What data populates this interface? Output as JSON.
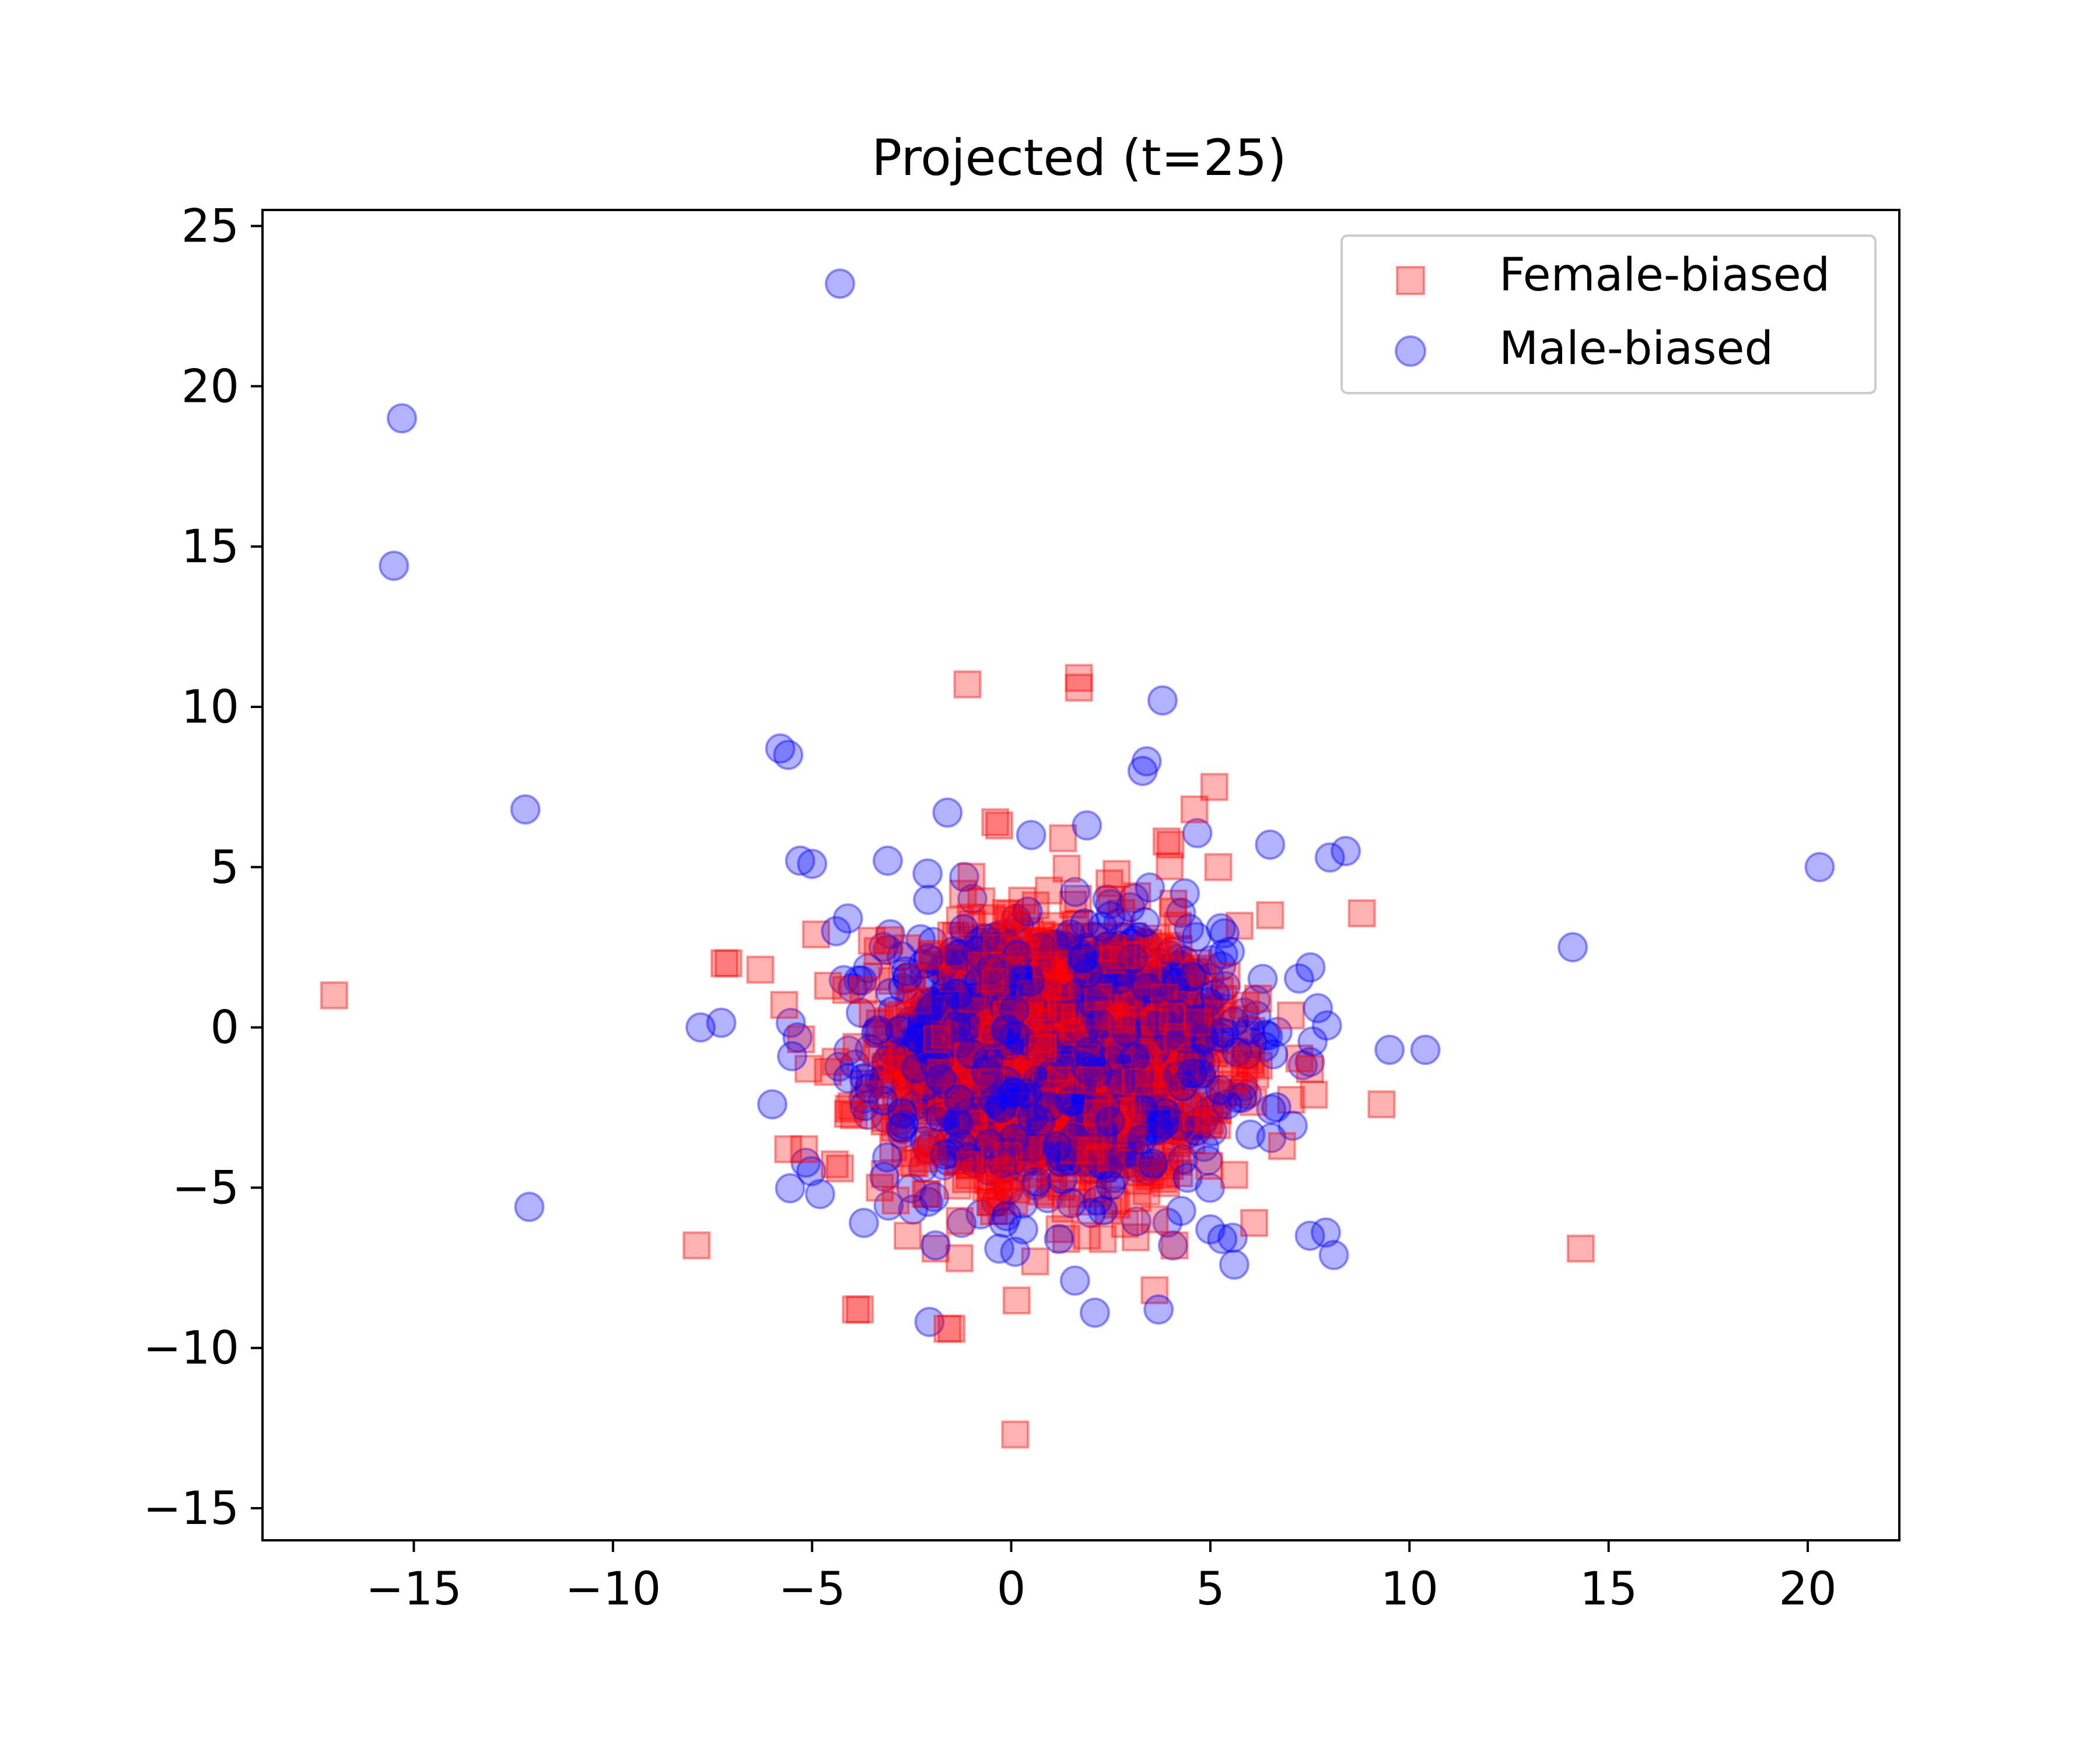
{
  "chart_data": {
    "type": "scatter",
    "title": "Projected (t=25)",
    "xlabel": "",
    "ylabel": "",
    "xlim": [
      -18.8,
      22.3
    ],
    "ylim": [
      -16.0,
      25.5
    ],
    "xticks": [
      -15,
      -10,
      -5,
      0,
      5,
      10,
      15,
      20
    ],
    "yticks": [
      -15,
      -10,
      -5,
      0,
      5,
      10,
      15,
      20,
      25
    ],
    "xtick_labels": [
      "−15",
      "−10",
      "−5",
      "0",
      "5",
      "10",
      "15",
      "20"
    ],
    "ytick_labels": [
      "−15",
      "−10",
      "−5",
      "0",
      "5",
      "10",
      "15",
      "20",
      "25"
    ],
    "grid": false,
    "legend_position": "top-right",
    "series": [
      {
        "name": "Female-biased",
        "marker": "square",
        "color": "#ff0000",
        "opacity": 0.3,
        "points": [
          [
            -17.0,
            1.0
          ],
          [
            -7.9,
            -6.8
          ],
          [
            -7.2,
            2.0
          ],
          [
            -7.1,
            2.0
          ],
          [
            -6.3,
            1.8
          ],
          [
            -5.7,
            0.7
          ],
          [
            -5.6,
            -3.8
          ],
          [
            -5.2,
            -3.8
          ],
          [
            -4.9,
            2.9
          ],
          [
            -4.6,
            1.3
          ],
          [
            -4.3,
            -4.4
          ],
          [
            -4.1,
            -2.7
          ],
          [
            -3.9,
            -8.8
          ],
          [
            -3.8,
            -8.8
          ],
          [
            -3.5,
            2.7
          ],
          [
            -3.3,
            -5.0
          ],
          [
            -2.9,
            -5.4
          ],
          [
            -2.6,
            -6.5
          ],
          [
            -2.2,
            -4.1
          ],
          [
            -1.9,
            -6.9
          ],
          [
            -1.6,
            -9.4
          ],
          [
            -1.5,
            -9.4
          ],
          [
            -1.3,
            -7.2
          ],
          [
            -1.1,
            10.7
          ],
          [
            -1.0,
            4.7
          ],
          [
            -0.4,
            6.4
          ],
          [
            -0.3,
            6.3
          ],
          [
            0.1,
            -12.7
          ],
          [
            0.6,
            -7.3
          ],
          [
            1.3,
            5.9
          ],
          [
            1.7,
            10.9
          ],
          [
            1.7,
            10.6
          ],
          [
            1.9,
            -6.5
          ],
          [
            2.3,
            -6.6
          ],
          [
            3.6,
            -8.2
          ],
          [
            3.9,
            5.8
          ],
          [
            4.0,
            5.7
          ],
          [
            4.1,
            -6.8
          ],
          [
            4.6,
            6.8
          ],
          [
            5.1,
            7.5
          ],
          [
            5.2,
            5.0
          ],
          [
            5.6,
            -4.6
          ],
          [
            6.1,
            -6.1
          ],
          [
            6.2,
            0.9
          ],
          [
            6.5,
            3.5
          ],
          [
            6.8,
            -3.7
          ],
          [
            7.5,
            -1.3
          ],
          [
            7.6,
            -2.1
          ],
          [
            9.3,
            -2.4
          ],
          [
            14.3,
            -6.9
          ]
        ]
      },
      {
        "name": "Male-biased",
        "marker": "circle",
        "color": "#0000ff",
        "opacity": 0.3,
        "points": [
          [
            -15.3,
            19.0
          ],
          [
            -15.5,
            14.4
          ],
          [
            -12.2,
            6.8
          ],
          [
            -12.1,
            -5.6
          ],
          [
            -7.8,
            0.0
          ],
          [
            -6.0,
            -2.4
          ],
          [
            -5.8,
            8.7
          ],
          [
            -5.6,
            8.5
          ],
          [
            -5.5,
            -0.9
          ],
          [
            -5.3,
            5.2
          ],
          [
            -5.0,
            5.1
          ],
          [
            -4.8,
            -5.2
          ],
          [
            -4.4,
            3.0
          ],
          [
            -4.3,
            23.2
          ],
          [
            -4.1,
            3.4
          ],
          [
            -3.7,
            -6.1
          ],
          [
            -3.1,
            5.2
          ],
          [
            -2.1,
            4.8
          ],
          [
            -1.9,
            -6.8
          ],
          [
            -1.6,
            6.7
          ],
          [
            -0.3,
            -6.9
          ],
          [
            0.1,
            -7.0
          ],
          [
            0.3,
            -6.3
          ],
          [
            0.5,
            6.0
          ],
          [
            1.2,
            -6.6
          ],
          [
            1.6,
            -7.9
          ],
          [
            1.9,
            6.3
          ],
          [
            2.1,
            -8.9
          ],
          [
            3.3,
            8.0
          ],
          [
            3.4,
            8.3
          ],
          [
            3.7,
            -8.8
          ],
          [
            3.8,
            10.2
          ],
          [
            5.0,
            -6.3
          ],
          [
            5.3,
            -6.6
          ],
          [
            5.6,
            -7.4
          ],
          [
            6.5,
            5.7
          ],
          [
            7.5,
            -6.5
          ],
          [
            7.7,
            0.6
          ],
          [
            7.9,
            -6.4
          ],
          [
            8.1,
            -7.1
          ],
          [
            8.0,
            5.3
          ],
          [
            8.4,
            5.5
          ],
          [
            9.5,
            -0.7
          ],
          [
            10.4,
            -0.7
          ],
          [
            14.1,
            2.5
          ],
          [
            20.3,
            5.0
          ]
        ]
      }
    ],
    "cluster": {
      "n": 2600,
      "x_mean": 1.2,
      "x_sd": 2.1,
      "y_mean": -0.8,
      "y_sd": 2.0
    }
  }
}
